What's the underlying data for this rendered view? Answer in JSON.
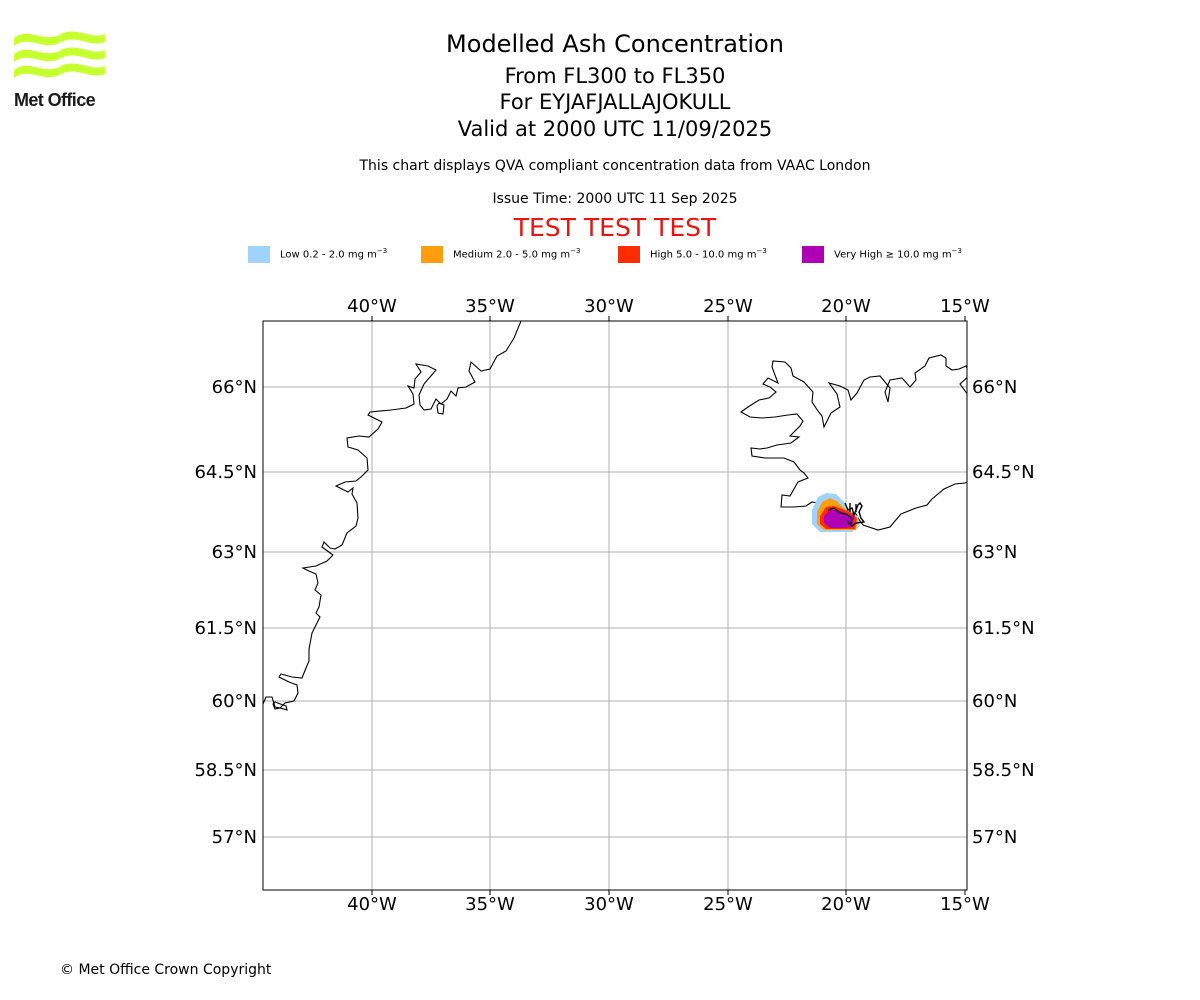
{
  "logo": {
    "text": "Met Office",
    "color": "#c8ff2e"
  },
  "title": {
    "main": "Modelled Ash Concentration",
    "levels": "From FL300 to FL350",
    "volcano": "For EYJAFJALLAJOKULL",
    "valid": "Valid at 2000 UTC 11/09/2025"
  },
  "description": "This chart displays QVA compliant concentration data from VAAC London",
  "issue_time": "Issue Time: 2000 UTC 11 Sep 2025",
  "test_banner": "TEST TEST TEST",
  "legend": [
    {
      "label": "Low 0.2 - 2.0 mg m",
      "exp": "−3",
      "color": "#a0d3fb"
    },
    {
      "label": "Medium 2.0 - 5.0 mg m",
      "exp": "−3",
      "color": "#ff9d0e"
    },
    {
      "label": "High 5.0 - 10.0 mg m",
      "exp": "−3",
      "color": "#ff2c00"
    },
    {
      "label": "Very High  ≥  10.0 mg m",
      "exp": "−3",
      "color": "#b000b5"
    }
  ],
  "map": {
    "lon_ticks": [
      "40°W",
      "35°W",
      "30°W",
      "25°W",
      "20°W",
      "15°W"
    ],
    "lat_ticks": [
      "66°N",
      "64.5°N",
      "63°N",
      "61.5°N",
      "60°N",
      "58.5°N",
      "57°N"
    ],
    "lon_range": [
      -44.6,
      -14.9
    ],
    "lat_range": [
      56.1,
      67.2
    ],
    "volcano_position": {
      "lat": 63.63,
      "lon": -19.62
    },
    "ash_levels": [
      "low",
      "medium",
      "high",
      "very high"
    ]
  },
  "copyright": "© Met Office Crown Copyright"
}
